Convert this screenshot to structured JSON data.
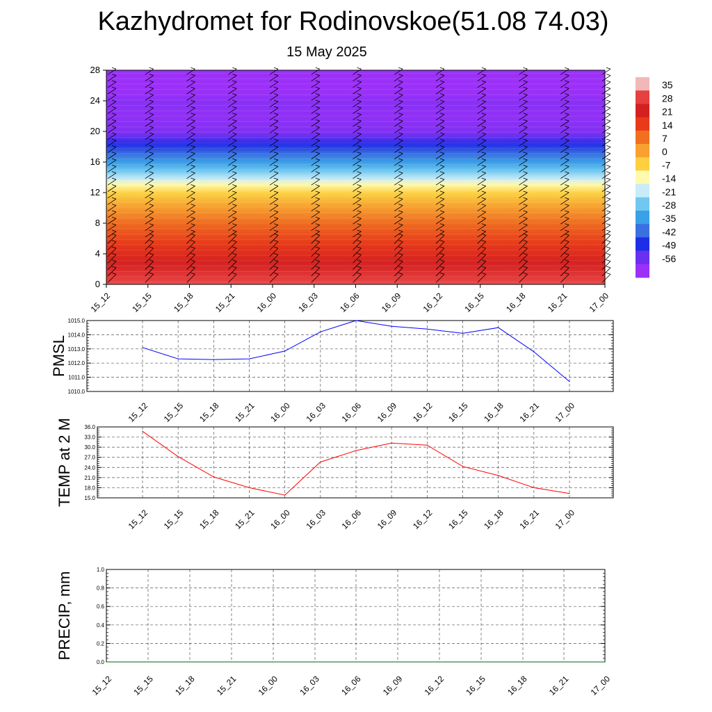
{
  "title": "Kazhydromet for Rodinovskoe(51.08 74.03)",
  "subtitle": "15 May 2025",
  "chart_data": [
    {
      "type": "heatmap",
      "title": "",
      "xlabel": "",
      "ylabel": "",
      "x_ticks": [
        "15_12",
        "15_15",
        "15_18",
        "15_21",
        "16_00",
        "16_03",
        "16_06",
        "16_09",
        "16_12",
        "16_15",
        "16_18",
        "16_21",
        "17_00"
      ],
      "y_ticks": [
        0,
        4,
        8,
        12,
        16,
        20,
        24,
        28
      ],
      "ylim": [
        0,
        28
      ],
      "colorbar_labels": [
        "35",
        "28",
        "21",
        "14",
        "7",
        "0",
        "-7",
        "-14",
        "-21",
        "-28",
        "-35",
        "-42",
        "-49",
        "-56"
      ],
      "colorbar_colors": [
        "#f2b8b8",
        "#e64040",
        "#d42020",
        "#e83a1a",
        "#f07020",
        "#f8a030",
        "#fcd040",
        "#fffab0",
        "#c8ecfa",
        "#70c8f0",
        "#3aa0e8",
        "#3a70e0",
        "#1e2ee8",
        "#6a30f0",
        "#9b30f8"
      ],
      "profile": [
        {
          "h": 0,
          "t": 33
        },
        {
          "h": 2,
          "t": 27
        },
        {
          "h": 4,
          "t": 21
        },
        {
          "h": 6,
          "t": 16
        },
        {
          "h": 8,
          "t": 11
        },
        {
          "h": 10,
          "t": 4
        },
        {
          "h": 12,
          "t": -4
        },
        {
          "h": 13,
          "t": -10
        },
        {
          "h": 14,
          "t": -19
        },
        {
          "h": 16,
          "t": -32
        },
        {
          "h": 18,
          "t": -44
        },
        {
          "h": 20,
          "t": -56
        },
        {
          "h": 22,
          "t": -58
        },
        {
          "h": 24,
          "t": -57
        },
        {
          "h": 26,
          "t": -62
        },
        {
          "h": 28,
          "t": -64
        }
      ],
      "grid": false
    },
    {
      "type": "line",
      "ylabel": "PMSL",
      "x": [
        "15_12",
        "15_15",
        "15_18",
        "15_21",
        "16_00",
        "16_03",
        "16_06",
        "16_09",
        "16_12",
        "16_15",
        "16_18",
        "16_21",
        "17_00"
      ],
      "ylim": [
        1010.0,
        1015.0
      ],
      "y_ticks": [
        "1010.0",
        "1011.0",
        "1012.0",
        "1013.0",
        "1014.0",
        "1015.0"
      ],
      "series": [
        {
          "values": [
            1013.1,
            1012.3,
            1012.25,
            1012.3,
            1012.85,
            1014.2,
            1015.0,
            1014.6,
            1014.4,
            1014.1,
            1014.5,
            1012.8,
            1010.7
          ]
        }
      ],
      "color": "#0000ff",
      "grid": true
    },
    {
      "type": "line",
      "ylabel": "TEMP at 2 M",
      "x": [
        "15_12",
        "15_15",
        "15_18",
        "15_21",
        "16_00",
        "16_03",
        "16_06",
        "16_09",
        "16_12",
        "16_15",
        "16_18",
        "16_21",
        "17_00"
      ],
      "ylim": [
        15.0,
        36.0
      ],
      "y_ticks": [
        "15.0",
        "18.0",
        "21.0",
        "24.0",
        "27.0",
        "30.0",
        "33.0",
        "36.0"
      ],
      "series": [
        {
          "values": [
            34.7,
            27.2,
            21.2,
            18.0,
            15.8,
            25.6,
            29.0,
            31.2,
            30.6,
            24.3,
            21.6,
            18.0,
            16.3
          ]
        }
      ],
      "color": "#ff0000",
      "grid": true
    },
    {
      "type": "line",
      "ylabel": "PRECIP, mm",
      "x": [
        "15_12",
        "15_15",
        "15_18",
        "15_21",
        "16_00",
        "16_03",
        "16_06",
        "16_09",
        "16_12",
        "16_15",
        "16_18",
        "16_21",
        "17_00"
      ],
      "ylim": [
        0.0,
        1.0
      ],
      "y_ticks": [
        "0.0",
        "0.2",
        "0.4",
        "0.6",
        "0.8",
        "1.0"
      ],
      "series": [
        {
          "values": [
            0,
            0,
            0,
            0,
            0,
            0,
            0,
            0,
            0,
            0,
            0,
            0,
            0
          ]
        }
      ],
      "color": "#006400",
      "grid": true
    }
  ]
}
